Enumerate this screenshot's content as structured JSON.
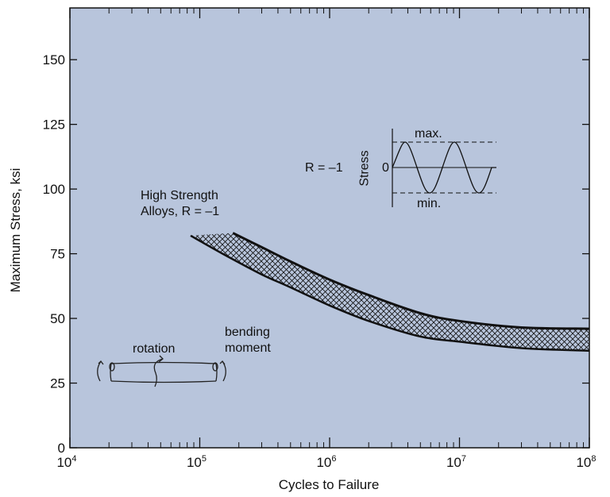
{
  "chart_data": {
    "type": "line",
    "title": "",
    "xlabel": "Cycles to Failure",
    "ylabel": "Maximum Stress, ksi",
    "x_scale": "log",
    "xlim": [
      10000,
      100000000
    ],
    "ylim": [
      0,
      170
    ],
    "x_ticks": [
      {
        "value": 10000,
        "base": "10",
        "exp": "4"
      },
      {
        "value": 100000,
        "base": "10",
        "exp": "5"
      },
      {
        "value": 1000000,
        "base": "10",
        "exp": "6"
      },
      {
        "value": 10000000,
        "base": "10",
        "exp": "7"
      },
      {
        "value": 100000000,
        "base": "10",
        "exp": "8"
      }
    ],
    "y_ticks": [
      0,
      25,
      50,
      75,
      100,
      125,
      150
    ],
    "grid": false,
    "background_color": "#b8c5dc",
    "line_color": "#111111",
    "series": [
      {
        "band": "upper",
        "x": [
          180000,
          300000,
          500000,
          1000000,
          2000000,
          5000000,
          10000000,
          30000000,
          100000000
        ],
        "y": [
          83,
          77.5,
          72,
          65,
          59,
          52,
          49,
          46.5,
          46
        ]
      },
      {
        "band": "lower",
        "x": [
          85000,
          150000,
          300000,
          500000,
          1000000,
          2000000,
          5000000,
          10000000,
          30000000,
          100000000
        ],
        "y": [
          82,
          75,
          67,
          62,
          55,
          49,
          43,
          41,
          38.5,
          37.5
        ]
      }
    ],
    "annotations": {
      "curve_label_line1": "High Strength",
      "curve_label_line2": "Alloys, R = –1",
      "rotation": "rotation",
      "bending_line1": "bending",
      "bending_line2": "moment",
      "ratio": "R = –1",
      "inset_ylabel": "Stress",
      "inset_zero": "0",
      "inset_max": "max.",
      "inset_min": "min."
    }
  }
}
